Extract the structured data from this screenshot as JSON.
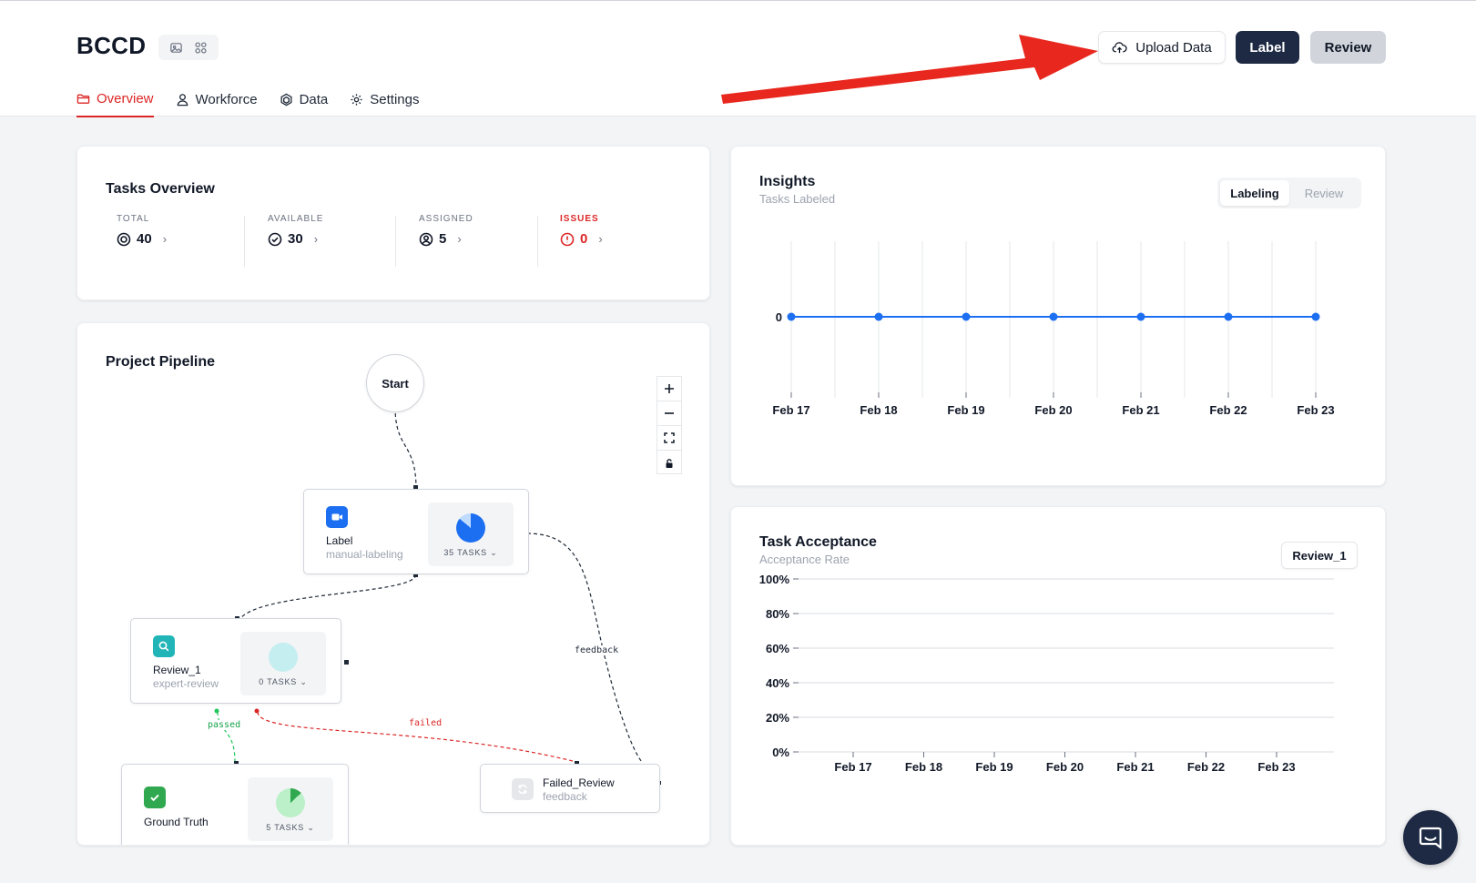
{
  "project": {
    "title": "BCCD"
  },
  "tabs": [
    {
      "label": "Overview",
      "icon": "folder-icon",
      "active": true
    },
    {
      "label": "Workforce",
      "icon": "user-icon"
    },
    {
      "label": "Data",
      "icon": "dataset-icon"
    },
    {
      "label": "Settings",
      "icon": "gear-icon"
    }
  ],
  "actions": {
    "upload_label": "Upload Data",
    "label_label": "Label",
    "review_label": "Review"
  },
  "tasks_overview": {
    "title": "Tasks Overview",
    "stats": [
      {
        "label": "TOTAL",
        "value": "40"
      },
      {
        "label": "AVAILABLE",
        "value": "30"
      },
      {
        "label": "ASSIGNED",
        "value": "5"
      },
      {
        "label": "ISSUES",
        "value": "0"
      }
    ]
  },
  "pipeline": {
    "title": "Project Pipeline",
    "start_label": "Start",
    "nodes": [
      {
        "name": "Label",
        "type": "manual-labeling",
        "tasks": "35 TASKS",
        "fill": 0.857
      },
      {
        "name": "Review_1",
        "type": "expert-review",
        "tasks": "0 TASKS",
        "fill": 0
      },
      {
        "name": "Ground Truth",
        "type": "",
        "tasks": "5 TASKS",
        "fill": 0.125
      },
      {
        "name": "Failed_Review",
        "type": "feedback"
      }
    ],
    "edges": {
      "passed": "passed",
      "failed": "failed",
      "feedback": "feedback"
    }
  },
  "insights": {
    "title": "Insights",
    "subtitle": "Tasks Labeled",
    "toggle": [
      "Labeling",
      "Review"
    ],
    "chart_data": {
      "type": "line",
      "x": [
        "Feb 17",
        "Feb 18",
        "Feb 19",
        "Feb 20",
        "Feb 21",
        "Feb 22",
        "Feb 23"
      ],
      "series": [
        {
          "values": [
            0,
            0,
            0,
            0,
            0,
            0,
            0
          ]
        }
      ],
      "y_ticks": [
        "0"
      ],
      "grid": "vertical",
      "color": "#1d6ff2"
    }
  },
  "acceptance": {
    "title": "Task Acceptance",
    "subtitle": "Acceptance Rate",
    "selector": "Review_1",
    "chart_data": {
      "type": "line",
      "x": [
        "Feb 17",
        "Feb 18",
        "Feb 19",
        "Feb 20",
        "Feb 21",
        "Feb 22",
        "Feb 23"
      ],
      "series": [],
      "y_ticks": [
        "100%",
        "80%",
        "60%",
        "40%",
        "20%",
        "0%"
      ],
      "ylim": [
        0,
        100
      ],
      "grid": "horizontal"
    }
  },
  "colors": {
    "accent": "#dc2626",
    "primary": "#1e2a44",
    "chart_blue": "#1d6ff2",
    "review_teal": "#22b5b8",
    "ground_truth_green": "#2fa84f"
  }
}
